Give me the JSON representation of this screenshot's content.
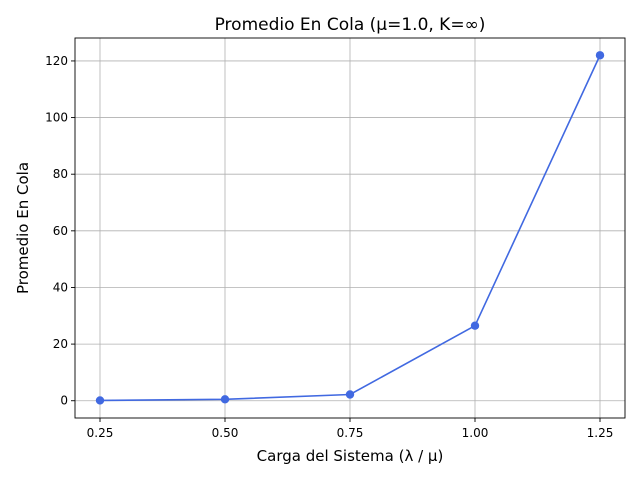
{
  "chart_data": {
    "type": "line",
    "title": "Promedio En Cola (μ=1.0, K=∞)",
    "xlabel": "Carga del Sistema (λ / μ)",
    "ylabel": "Promedio En Cola",
    "x": [
      0.25,
      0.5,
      0.75,
      1.0,
      1.25
    ],
    "x_tick_labels": [
      "0.25",
      "0.50",
      "0.75",
      "1.00",
      "1.25"
    ],
    "y_ticks": [
      0,
      20,
      40,
      60,
      80,
      100,
      120
    ],
    "xlim": [
      0.2,
      1.3
    ],
    "ylim": [
      -6.1,
      128.1
    ],
    "grid": true,
    "series": [
      {
        "values": [
          0.1,
          0.5,
          2.2,
          26.5,
          122.0
        ],
        "color": "#4169e1",
        "marker": "circle"
      }
    ]
  }
}
